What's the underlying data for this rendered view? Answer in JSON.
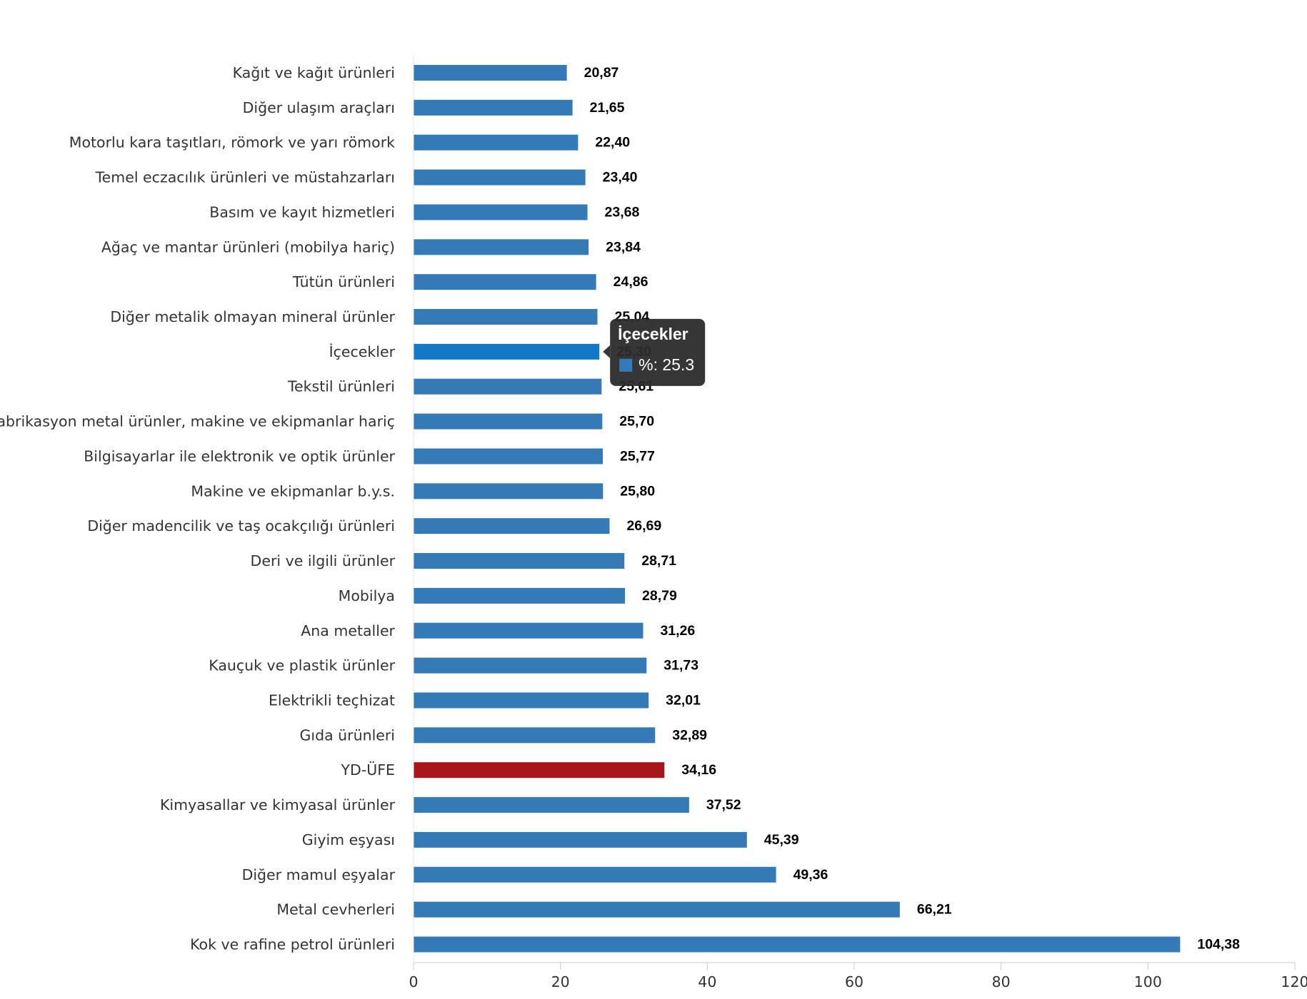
{
  "chart_data": {
    "type": "bar",
    "orientation": "horizontal",
    "categories": [
      "Kağıt ve kağıt ürünleri",
      "Diğer ulaşım araçları",
      "Motorlu kara taşıtları, römork ve yarı römork",
      "Temel eczacılık ürünleri ve müstahzarları",
      "Basım ve kayıt hizmetleri",
      "Ağaç ve mantar ürünleri (mobilya hariç)",
      "Tütün ürünleri",
      "Diğer metalik olmayan mineral ürünler",
      "İçecekler",
      "Tekstil ürünleri",
      "Fabrikasyon metal ürünler, makine ve ekipmanlar hariç",
      "Bilgisayarlar ile elektronik ve optik ürünler",
      "Makine ve ekipmanlar b.y.s.",
      "Diğer madencilik ve taş ocakçılığı ürünleri",
      "Deri ve ilgili ürünler",
      "Mobilya",
      "Ana metaller",
      "Kauçuk ve plastik ürünler",
      "Elektrikli teçhizat",
      "Gıda ürünleri",
      "YD-ÜFE",
      "Kimyasallar ve kimyasal ürünler",
      "Giyim eşyası",
      "Diğer mamul eşyalar",
      "Metal cevherleri",
      "Kok ve rafine petrol ürünleri"
    ],
    "values": [
      20.87,
      21.65,
      22.4,
      23.4,
      23.68,
      23.84,
      24.86,
      25.04,
      25.3,
      25.61,
      25.7,
      25.77,
      25.8,
      26.69,
      28.71,
      28.79,
      31.26,
      31.73,
      32.01,
      32.89,
      34.16,
      37.52,
      45.39,
      49.36,
      66.21,
      104.38
    ],
    "value_labels": [
      "20,87",
      "21,65",
      "22,40",
      "23,40",
      "23,68",
      "23,84",
      "24,86",
      "25,04",
      "25,30",
      "25,61",
      "25,70",
      "25,77",
      "25,80",
      "26,69",
      "28,71",
      "28,79",
      "31,26",
      "31,73",
      "32,01",
      "32,89",
      "34,16",
      "37,52",
      "45,39",
      "49,36",
      "66,21",
      "104,38"
    ],
    "xlim": [
      0,
      120
    ],
    "xticks": [
      0,
      20,
      40,
      60,
      80,
      100,
      120
    ],
    "title": "",
    "xlabel": "",
    "ylabel": "",
    "grid": false,
    "legend": "none",
    "colors": {
      "default": "#337ab7",
      "hovered": "#1278c7",
      "highlight": "#a8161c"
    },
    "highlight_category": "YD-ÜFE",
    "hovered_category": "İçecekler",
    "tooltip": {
      "title": "İçecekler",
      "text": "%: 25.3",
      "swatch_color": "#337ab7",
      "background": "#2b2b2b"
    }
  }
}
